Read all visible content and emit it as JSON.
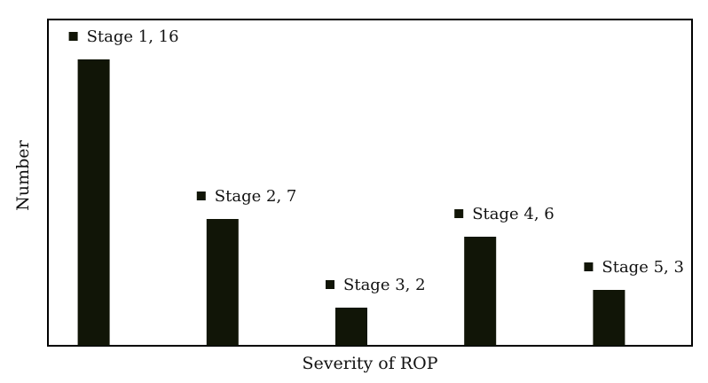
{
  "chart_data": {
    "type": "bar",
    "categories": [
      "Stage 1",
      "Stage 2",
      "Stage 3",
      "Stage 4",
      "Stage 5"
    ],
    "values": [
      16,
      7,
      2,
      6,
      3
    ],
    "data_labels": [
      "Stage 1, 16",
      "Stage 2, 7",
      "Stage 3, 2",
      "Stage 4, 6",
      "Stage 5, 3"
    ],
    "title": "",
    "xlabel": "Severity of ROP",
    "ylabel": "Number",
    "ylim": [
      0,
      17.6
    ],
    "grid": false,
    "legend": "none",
    "bar_color": "#111507"
  }
}
